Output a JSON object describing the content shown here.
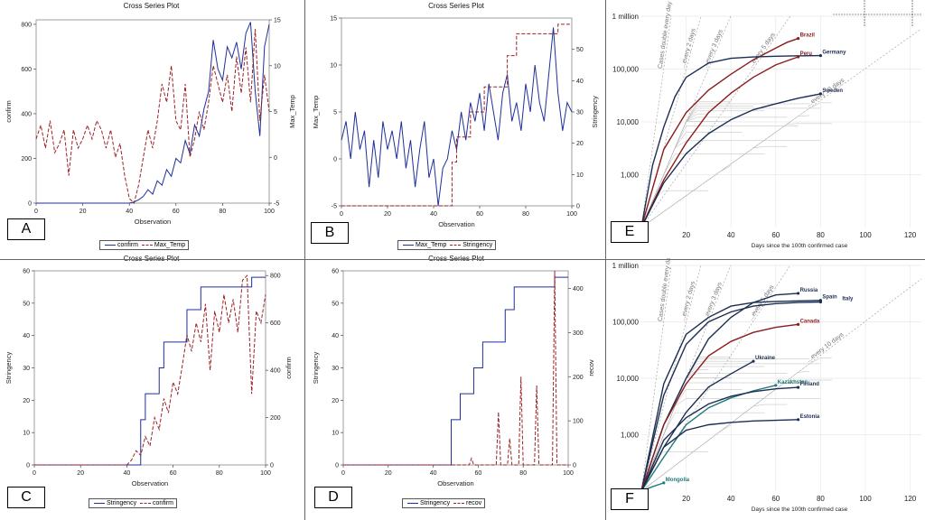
{
  "panels": {
    "A": {
      "title": "Cross Series Plot",
      "xlabel": "Observation",
      "ylabel_left": "confirm",
      "ylabel_right": "Max_Temp",
      "legend": [
        "confirm",
        "Max_Temp"
      ],
      "letter": "A"
    },
    "B": {
      "title": "Cross Series Plot",
      "xlabel": "Observation",
      "ylabel_left": "Max_Temp",
      "ylabel_right": "Stringency",
      "legend": [
        "Max_Temp",
        "Stringency"
      ],
      "letter": "B"
    },
    "C": {
      "title": "Cross Series Plot",
      "xlabel": "Observation",
      "ylabel_left": "Stringency",
      "ylabel_right": "confirm",
      "legend": [
        "Stringency",
        "confirm"
      ],
      "letter": "C"
    },
    "D": {
      "title": "Cross Series Plot",
      "xlabel": "Observation",
      "ylabel_left": "Stringency",
      "ylabel_right": "recov",
      "legend": [
        "Stringency",
        "recov"
      ],
      "letter": "D"
    },
    "E": {
      "letter": "E",
      "xlabel": "Days since the 100th confirmed case",
      "guides": [
        "Cases double every day",
        "...every 2 days",
        "...every 3 days",
        "...every 5 days",
        "...every 10 days"
      ],
      "countries": [
        "Brazil",
        "Germany",
        "Peru",
        "Sweden"
      ]
    },
    "F": {
      "letter": "F",
      "xlabel": "Days since the 100th confirmed case",
      "guides": [
        "Cases double every day",
        "...every 2 days",
        "...every 3 days",
        "...every 5 days",
        "...every 10 days"
      ],
      "countries": [
        "Russia",
        "Spain",
        "Italy",
        "Canada",
        "Ukraine",
        "Kazakhstan",
        "Finland",
        "Estonia",
        "Mongolia"
      ]
    }
  },
  "colors": {
    "blue": "#1f2f9a",
    "red": "#9b2226",
    "navy": "#1c2e52",
    "maroon": "#8a1c1c",
    "teal": "#1f7a7a",
    "grey": "#b8b8b8"
  },
  "chart_data": [
    {
      "id": "A",
      "type": "line",
      "xlim": [
        0,
        100
      ],
      "xticks": [
        0,
        20,
        40,
        60,
        80,
        100
      ],
      "left_axis": {
        "label": "confirm",
        "lim": [
          0,
          820
        ],
        "ticks": [
          0,
          200,
          400,
          600,
          800
        ]
      },
      "right_axis": {
        "label": "Max_Temp",
        "lim": [
          -5,
          15
        ],
        "ticks": [
          -5,
          0,
          5,
          10,
          15
        ]
      },
      "series": [
        {
          "name": "confirm",
          "axis": "left",
          "x": [
            0,
            10,
            20,
            30,
            40,
            42,
            44,
            46,
            48,
            50,
            52,
            54,
            56,
            58,
            60,
            62,
            64,
            66,
            68,
            70,
            72,
            74,
            76,
            78,
            80,
            82,
            84,
            86,
            88,
            90,
            92,
            94,
            96,
            98,
            100
          ],
          "values": [
            0,
            0,
            0,
            0,
            0,
            5,
            15,
            30,
            60,
            40,
            100,
            80,
            150,
            120,
            200,
            180,
            280,
            220,
            350,
            300,
            420,
            500,
            730,
            600,
            550,
            700,
            650,
            720,
            600,
            760,
            810,
            500,
            300,
            700,
            800
          ]
        },
        {
          "name": "Max_Temp",
          "axis": "right",
          "x": [
            0,
            2,
            4,
            6,
            8,
            10,
            12,
            14,
            16,
            18,
            20,
            22,
            24,
            26,
            28,
            30,
            32,
            34,
            36,
            38,
            40,
            42,
            44,
            46,
            48,
            50,
            52,
            54,
            56,
            58,
            60,
            62,
            64,
            66,
            68,
            70,
            72,
            74,
            76,
            78,
            80,
            82,
            84,
            86,
            88,
            90,
            92,
            94,
            96,
            98,
            100
          ],
          "values": [
            2,
            3.5,
            1,
            4,
            0.5,
            1.5,
            3,
            -2,
            3,
            1,
            2,
            3.5,
            2,
            4,
            3,
            1,
            3,
            0,
            1.5,
            -2,
            -4.5,
            -5,
            -3,
            0,
            3,
            1,
            4,
            8,
            6,
            10,
            4,
            3,
            8,
            0,
            2,
            5,
            3,
            6,
            10,
            8,
            6,
            9,
            5,
            11,
            7,
            12,
            6,
            14,
            4,
            9,
            5
          ]
        }
      ]
    },
    {
      "id": "B",
      "type": "line",
      "xlim": [
        0,
        100
      ],
      "xticks": [
        0,
        20,
        40,
        60,
        80,
        100
      ],
      "left_axis": {
        "label": "Max_Temp",
        "lim": [
          -5,
          15
        ],
        "ticks": [
          -5,
          0,
          5,
          10,
          15
        ]
      },
      "right_axis": {
        "label": "Stringency",
        "lim": [
          0,
          60
        ],
        "ticks": [
          0,
          10,
          20,
          30,
          40,
          50
        ]
      },
      "series": [
        {
          "name": "Max_Temp",
          "axis": "left",
          "x": [
            0,
            2,
            4,
            6,
            8,
            10,
            12,
            14,
            16,
            18,
            20,
            22,
            24,
            26,
            28,
            30,
            32,
            34,
            36,
            38,
            40,
            42,
            44,
            46,
            48,
            50,
            52,
            54,
            56,
            58,
            60,
            62,
            64,
            66,
            68,
            70,
            72,
            74,
            76,
            78,
            80,
            82,
            84,
            86,
            88,
            90,
            92,
            94,
            96,
            98,
            100
          ],
          "values": [
            2,
            4,
            0,
            5,
            1,
            3,
            -3,
            2,
            -2,
            4,
            1,
            3,
            0,
            4,
            -1,
            2,
            -3,
            1,
            4,
            -2,
            0,
            -5,
            -1,
            0,
            3,
            1,
            5,
            2,
            6,
            4,
            7,
            3,
            8,
            5,
            2,
            7,
            9,
            4,
            6,
            3,
            8,
            5,
            10,
            6,
            4,
            9,
            14,
            7,
            3,
            6,
            5
          ]
        },
        {
          "name": "Stringency",
          "axis": "right",
          "x": [
            0,
            46,
            48,
            50,
            54,
            56,
            62,
            66,
            72,
            76,
            86,
            90,
            94,
            96,
            100
          ],
          "values": [
            0,
            0,
            14,
            22,
            22,
            30,
            38,
            38,
            48,
            55,
            55,
            55,
            58,
            58,
            58
          ]
        }
      ]
    },
    {
      "id": "C",
      "type": "line",
      "xlim": [
        0,
        100
      ],
      "xticks": [
        0,
        20,
        40,
        60,
        80,
        100
      ],
      "left_axis": {
        "label": "Stringency",
        "lim": [
          0,
          60
        ],
        "ticks": [
          0,
          10,
          20,
          30,
          40,
          50,
          60
        ]
      },
      "right_axis": {
        "label": "confirm",
        "lim": [
          0,
          820
        ],
        "ticks": [
          0,
          200,
          400,
          600,
          800
        ]
      },
      "series": [
        {
          "name": "Stringency",
          "axis": "left",
          "x": [
            0,
            45,
            46,
            48,
            50,
            54,
            56,
            62,
            66,
            72,
            76,
            86,
            90,
            94,
            96,
            100
          ],
          "values": [
            0,
            0,
            14,
            22,
            22,
            30,
            38,
            38,
            48,
            55,
            55,
            55,
            55,
            58,
            58,
            58
          ]
        },
        {
          "name": "confirm",
          "axis": "right",
          "x": [
            0,
            40,
            42,
            44,
            46,
            48,
            50,
            52,
            54,
            56,
            58,
            60,
            62,
            64,
            66,
            68,
            70,
            72,
            74,
            76,
            78,
            80,
            82,
            84,
            86,
            88,
            90,
            92,
            94,
            96,
            98,
            100
          ],
          "values": [
            0,
            0,
            20,
            60,
            40,
            120,
            80,
            200,
            150,
            280,
            220,
            350,
            300,
            420,
            550,
            480,
            600,
            520,
            680,
            400,
            650,
            560,
            720,
            600,
            700,
            560,
            780,
            800,
            300,
            650,
            600,
            720
          ]
        }
      ]
    },
    {
      "id": "D",
      "type": "line",
      "xlim": [
        0,
        100
      ],
      "xticks": [
        0,
        20,
        40,
        60,
        80,
        100
      ],
      "left_axis": {
        "label": "Stringency",
        "lim": [
          0,
          60
        ],
        "ticks": [
          0,
          10,
          20,
          30,
          40,
          50,
          60
        ]
      },
      "right_axis": {
        "label": "recov",
        "lim": [
          0,
          440
        ],
        "ticks": [
          0,
          100,
          200,
          300,
          400
        ]
      },
      "series": [
        {
          "name": "Stringency",
          "axis": "left",
          "x": [
            0,
            47,
            48,
            52,
            54,
            58,
            62,
            66,
            72,
            76,
            86,
            90,
            94,
            96,
            100
          ],
          "values": [
            0,
            0,
            14,
            22,
            22,
            30,
            38,
            38,
            48,
            55,
            55,
            55,
            58,
            58,
            58
          ]
        },
        {
          "name": "recov",
          "axis": "right",
          "x": [
            0,
            56,
            57,
            58,
            68,
            69,
            70,
            73,
            74,
            75,
            78,
            79,
            80,
            85,
            86,
            87,
            93,
            94,
            95,
            96,
            100
          ],
          "values": [
            0,
            0,
            15,
            0,
            0,
            120,
            0,
            0,
            60,
            0,
            0,
            200,
            0,
            0,
            180,
            0,
            0,
            440,
            0,
            0,
            0
          ]
        }
      ]
    },
    {
      "id": "E",
      "type": "line",
      "yscale": "log",
      "xticks": [
        20,
        40,
        60,
        80,
        100,
        120
      ],
      "yticks": [
        "1,000",
        "10,000",
        "100,000",
        "1 million"
      ],
      "series": [
        {
          "name": "Brazil",
          "x": [
            0,
            10,
            20,
            30,
            40,
            50,
            60,
            65,
            70
          ],
          "values": [
            100,
            3000,
            15000,
            40000,
            80000,
            150000,
            250000,
            320000,
            380000
          ]
        },
        {
          "name": "Germany",
          "x": [
            0,
            5,
            10,
            15,
            20,
            30,
            40,
            50,
            60,
            70,
            80
          ],
          "values": [
            100,
            1500,
            8000,
            30000,
            70000,
            130000,
            160000,
            170000,
            175000,
            178000,
            180000
          ]
        },
        {
          "name": "Peru",
          "x": [
            0,
            10,
            20,
            30,
            40,
            50,
            60,
            70
          ],
          "values": [
            100,
            800,
            4000,
            15000,
            35000,
            70000,
            120000,
            170000
          ]
        },
        {
          "name": "Sweden",
          "x": [
            0,
            10,
            20,
            30,
            40,
            50,
            60,
            70,
            80
          ],
          "values": [
            100,
            700,
            2500,
            6000,
            11000,
            17000,
            22000,
            28000,
            34000
          ]
        }
      ]
    },
    {
      "id": "F",
      "type": "line",
      "yscale": "log",
      "xticks": [
        20,
        40,
        60,
        80,
        100,
        120
      ],
      "yticks": [
        "1,000",
        "10,000",
        "100,000",
        "1 million"
      ],
      "series": [
        {
          "name": "Russia",
          "x": [
            0,
            10,
            20,
            30,
            40,
            50,
            60,
            70
          ],
          "values": [
            100,
            1500,
            10000,
            50000,
            120000,
            220000,
            300000,
            320000
          ]
        },
        {
          "name": "Spain",
          "x": [
            0,
            10,
            20,
            30,
            40,
            50,
            60,
            70,
            80
          ],
          "values": [
            100,
            8000,
            60000,
            120000,
            190000,
            220000,
            230000,
            235000,
            240000
          ]
        },
        {
          "name": "Italy",
          "x": [
            0,
            10,
            20,
            30,
            40,
            50,
            60,
            70,
            80
          ],
          "values": [
            100,
            5000,
            40000,
            100000,
            150000,
            190000,
            210000,
            220000,
            225000
          ]
        },
        {
          "name": "Canada",
          "x": [
            0,
            10,
            20,
            30,
            40,
            50,
            60,
            70
          ],
          "values": [
            100,
            1500,
            8000,
            25000,
            45000,
            65000,
            80000,
            90000
          ]
        },
        {
          "name": "Ukraine",
          "x": [
            0,
            10,
            20,
            30,
            40,
            50
          ],
          "values": [
            100,
            600,
            2500,
            7000,
            12000,
            20000
          ]
        },
        {
          "name": "Kazakhstan",
          "x": [
            0,
            10,
            20,
            30,
            40,
            50,
            60
          ],
          "values": [
            100,
            400,
            1500,
            3000,
            4500,
            6000,
            7500
          ]
        },
        {
          "name": "Finland",
          "x": [
            0,
            10,
            20,
            30,
            40,
            50,
            60,
            70
          ],
          "values": [
            100,
            800,
            2000,
            3500,
            4800,
            5800,
            6500,
            6900
          ]
        },
        {
          "name": "Estonia",
          "x": [
            0,
            10,
            20,
            30,
            40,
            50,
            60,
            70
          ],
          "values": [
            100,
            600,
            1200,
            1500,
            1650,
            1750,
            1800,
            1850
          ]
        },
        {
          "name": "Mongolia",
          "x": [
            0,
            5,
            10
          ],
          "values": [
            100,
            120,
            140
          ]
        }
      ]
    }
  ]
}
